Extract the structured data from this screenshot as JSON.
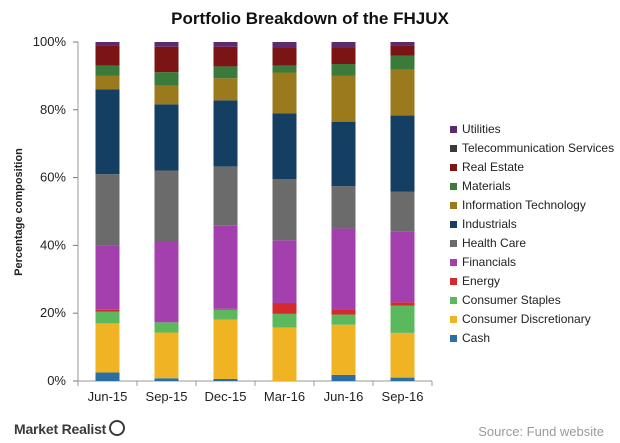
{
  "chart_data": {
    "type": "bar",
    "stacked": true,
    "title": "Portfolio Breakdown of the FHJUX",
    "xlabel": "",
    "ylabel": "Percentage composition",
    "ylim": [
      0,
      100
    ],
    "yticks": [
      "0%",
      "20%",
      "40%",
      "60%",
      "80%",
      "100%"
    ],
    "grid": false,
    "legend_position": "right",
    "categories": [
      "Jun-15",
      "Sep-15",
      "Dec-15",
      "Mar-16",
      "Jun-16",
      "Sep-16"
    ],
    "series": [
      {
        "name": "Cash",
        "color": "#2a6ea6",
        "values": [
          2.5,
          0.8,
          0.6,
          0.0,
          1.8,
          1.0
        ]
      },
      {
        "name": "Consumer Discretionary",
        "color": "#f0b323",
        "values": [
          14.5,
          13.5,
          17.5,
          15.8,
          14.8,
          13.2
        ]
      },
      {
        "name": "Consumer Staples",
        "color": "#5cb85c",
        "values": [
          3.5,
          3.0,
          3.0,
          4.0,
          3.0,
          8.0
        ]
      },
      {
        "name": "Energy",
        "color": "#d42a2e",
        "values": [
          0.5,
          0.0,
          0.2,
          3.2,
          1.6,
          1.0
        ]
      },
      {
        "name": "Financials",
        "color": "#a43fae",
        "values": [
          19.0,
          24.0,
          24.5,
          18.5,
          23.8,
          20.8
        ]
      },
      {
        "name": "Health Care",
        "color": "#6b6b6b",
        "values": [
          21.0,
          20.8,
          17.5,
          18.0,
          12.5,
          11.8
        ]
      },
      {
        "name": "Industrials",
        "color": "#143e62",
        "values": [
          25.0,
          19.5,
          19.5,
          19.5,
          19.0,
          22.5
        ]
      },
      {
        "name": "Information Technology",
        "color": "#9a7a1c",
        "values": [
          4.0,
          5.5,
          6.5,
          12.0,
          13.5,
          13.5
        ]
      },
      {
        "name": "Materials",
        "color": "#3a7a3a",
        "values": [
          3.0,
          4.0,
          3.5,
          2.0,
          3.5,
          4.2
        ]
      },
      {
        "name": "Real Estate",
        "color": "#7b1414",
        "values": [
          6.0,
          7.5,
          5.8,
          5.5,
          5.0,
          3.0
        ]
      },
      {
        "name": "Telecommunication Services",
        "color": "#3a3a3a",
        "values": [
          0.0,
          0.0,
          0.0,
          0.0,
          0.0,
          0.0
        ]
      },
      {
        "name": "Utilities",
        "color": "#5e2a6e",
        "values": [
          1.0,
          1.4,
          1.4,
          1.5,
          1.5,
          1.0
        ]
      }
    ]
  },
  "footer": {
    "logo": "Market Realist",
    "source": "Source: Fund website"
  }
}
